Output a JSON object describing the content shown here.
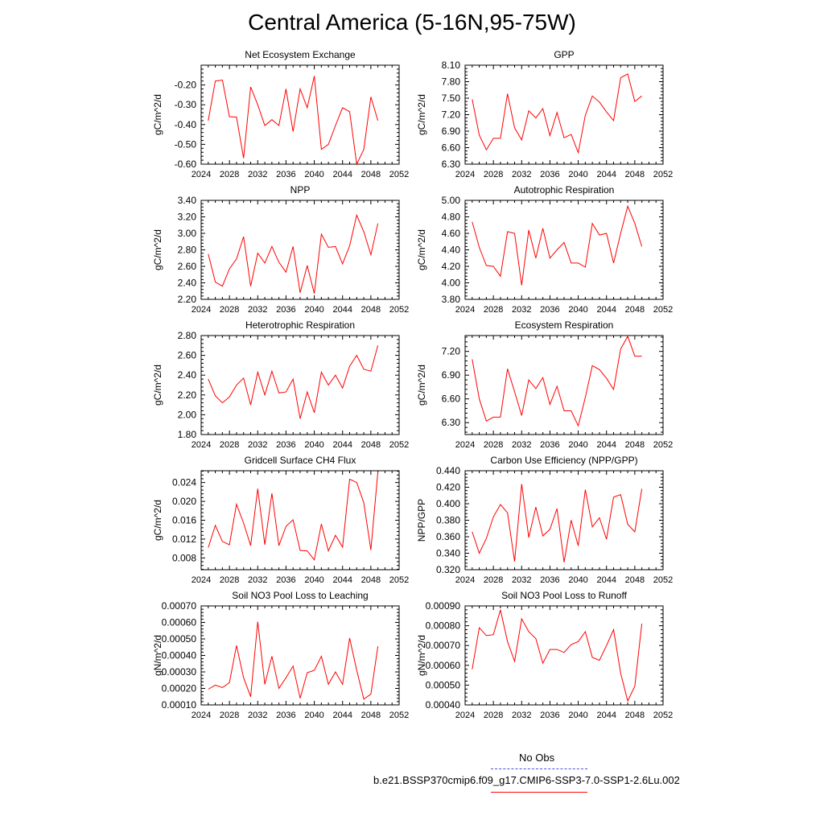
{
  "page_title": "Central America (5-16N,95-75W)",
  "colors": {
    "series_line": "#ff0000",
    "no_obs_line": "#4f4fdf",
    "axes": "#000000"
  },
  "legend": {
    "items": [
      {
        "label": "No Obs",
        "style": "dashed",
        "color": "#4f4fdf"
      },
      {
        "label": "b.e21.BSSP370cmip6.f09_g17.CMIP6-SSP3-7.0-SSP1-2.6Lu.002",
        "style": "solid",
        "color": "#ff0000"
      }
    ]
  },
  "chart_data": [
    {
      "type": "line",
      "title": "Net Ecosystem Exchange",
      "ylabel": "gC/m^2/d",
      "xlim": [
        2024,
        2052
      ],
      "ylim": [
        -0.6,
        -0.1
      ],
      "xticks": [
        "2024",
        "2028",
        "2032",
        "2036",
        "2040",
        "2044",
        "2048",
        "2052"
      ],
      "yticks": [
        "-0.60",
        "-0.50",
        "-0.40",
        "-0.30",
        "-0.20"
      ],
      "x": [
        2025,
        2026,
        2027,
        2028,
        2029,
        2030,
        2031,
        2032,
        2033,
        2034,
        2035,
        2036,
        2037,
        2038,
        2039,
        2040,
        2041,
        2042,
        2043,
        2044,
        2045,
        2046,
        2047,
        2048,
        2049
      ],
      "values": [
        -0.38,
        -0.18,
        -0.175,
        -0.36,
        -0.362,
        -0.57,
        -0.21,
        -0.3,
        -0.405,
        -0.375,
        -0.405,
        -0.22,
        -0.435,
        -0.22,
        -0.315,
        -0.155,
        -0.525,
        -0.5,
        -0.405,
        -0.315,
        -0.335,
        -0.6,
        -0.525,
        -0.26,
        -0.38
      ]
    },
    {
      "type": "line",
      "title": "GPP",
      "ylabel": "gC/m^2/d",
      "xlim": [
        2024,
        2052
      ],
      "ylim": [
        6.3,
        8.1
      ],
      "xticks": [
        "2024",
        "2028",
        "2032",
        "2036",
        "2040",
        "2044",
        "2048",
        "2052"
      ],
      "yticks": [
        "6.30",
        "6.60",
        "6.90",
        "7.20",
        "7.50",
        "7.80",
        "8.10"
      ],
      "x": [
        2025,
        2026,
        2027,
        2028,
        2029,
        2030,
        2031,
        2032,
        2033,
        2034,
        2035,
        2036,
        2037,
        2038,
        2039,
        2040,
        2041,
        2042,
        2043,
        2044,
        2045,
        2046,
        2047,
        2048,
        2049
      ],
      "values": [
        7.48,
        6.83,
        6.56,
        6.77,
        6.77,
        7.58,
        6.96,
        6.74,
        7.27,
        7.14,
        7.31,
        6.82,
        7.24,
        6.78,
        6.84,
        6.51,
        7.19,
        7.54,
        7.43,
        7.25,
        7.09,
        7.87,
        7.94,
        7.44,
        7.54
      ]
    },
    {
      "type": "line",
      "title": "NPP",
      "ylabel": "gC/m^2/d",
      "xlim": [
        2024,
        2052
      ],
      "ylim": [
        2.2,
        3.4
      ],
      "xticks": [
        "2024",
        "2028",
        "2032",
        "2036",
        "2040",
        "2044",
        "2048",
        "2052"
      ],
      "yticks": [
        "2.20",
        "2.40",
        "2.60",
        "2.80",
        "3.00",
        "3.20",
        "3.40"
      ],
      "x": [
        2025,
        2026,
        2027,
        2028,
        2029,
        2030,
        2031,
        2032,
        2033,
        2034,
        2035,
        2036,
        2037,
        2038,
        2039,
        2040,
        2041,
        2042,
        2043,
        2044,
        2045,
        2046,
        2047,
        2048,
        2049
      ],
      "values": [
        2.75,
        2.41,
        2.36,
        2.57,
        2.69,
        2.96,
        2.36,
        2.76,
        2.64,
        2.84,
        2.65,
        2.53,
        2.84,
        2.28,
        2.61,
        2.27,
        2.99,
        2.83,
        2.84,
        2.63,
        2.85,
        3.22,
        3.02,
        2.74,
        3.12
      ]
    },
    {
      "type": "line",
      "title": "Autotrophic Respiration",
      "ylabel": "gC/m^2/d",
      "xlim": [
        2024,
        2052
      ],
      "ylim": [
        3.8,
        5.0
      ],
      "xticks": [
        "2024",
        "2028",
        "2032",
        "2036",
        "2040",
        "2044",
        "2048",
        "2052"
      ],
      "yticks": [
        "3.80",
        "4.00",
        "4.20",
        "4.40",
        "4.60",
        "4.80",
        "5.00"
      ],
      "x": [
        2025,
        2026,
        2027,
        2028,
        2029,
        2030,
        2031,
        2032,
        2033,
        2034,
        2035,
        2036,
        2037,
        2038,
        2039,
        2040,
        2041,
        2042,
        2043,
        2044,
        2045,
        2046,
        2047,
        2048,
        2049
      ],
      "values": [
        4.74,
        4.43,
        4.21,
        4.2,
        4.08,
        4.62,
        4.6,
        3.97,
        4.64,
        4.3,
        4.66,
        4.3,
        4.4,
        4.49,
        4.24,
        4.24,
        4.19,
        4.72,
        4.58,
        4.6,
        4.24,
        4.6,
        4.93,
        4.72,
        4.44
      ]
    },
    {
      "type": "line",
      "title": "Heterotrophic Respiration",
      "ylabel": "gC/m^2/d",
      "xlim": [
        2024,
        2052
      ],
      "ylim": [
        1.8,
        2.8
      ],
      "xticks": [
        "2024",
        "2028",
        "2032",
        "2036",
        "2040",
        "2044",
        "2048",
        "2052"
      ],
      "yticks": [
        "1.80",
        "2.00",
        "2.20",
        "2.40",
        "2.60",
        "2.80"
      ],
      "x": [
        2025,
        2026,
        2027,
        2028,
        2029,
        2030,
        2031,
        2032,
        2033,
        2034,
        2035,
        2036,
        2037,
        2038,
        2039,
        2040,
        2041,
        2042,
        2043,
        2044,
        2045,
        2046,
        2047,
        2048,
        2049
      ],
      "values": [
        2.36,
        2.19,
        2.12,
        2.18,
        2.3,
        2.37,
        2.1,
        2.43,
        2.2,
        2.44,
        2.22,
        2.23,
        2.36,
        1.96,
        2.23,
        2.02,
        2.43,
        2.3,
        2.4,
        2.27,
        2.49,
        2.6,
        2.46,
        2.44,
        2.7
      ]
    },
    {
      "type": "line",
      "title": "Ecosystem Respiration",
      "ylabel": "gC/m^2/d",
      "xlim": [
        2024,
        2052
      ],
      "ylim": [
        6.15,
        7.4
      ],
      "xticks": [
        "2024",
        "2028",
        "2032",
        "2036",
        "2040",
        "2044",
        "2048",
        "2052"
      ],
      "yticks": [
        "6.30",
        "6.60",
        "6.90",
        "7.20"
      ],
      "x": [
        2025,
        2026,
        2027,
        2028,
        2029,
        2030,
        2031,
        2032,
        2033,
        2034,
        2035,
        2036,
        2037,
        2038,
        2039,
        2040,
        2041,
        2042,
        2043,
        2044,
        2045,
        2046,
        2047,
        2048,
        2049
      ],
      "values": [
        7.1,
        6.6,
        6.32,
        6.37,
        6.37,
        6.98,
        6.69,
        6.39,
        6.84,
        6.73,
        6.87,
        6.53,
        6.76,
        6.45,
        6.45,
        6.26,
        6.62,
        7.02,
        6.97,
        6.86,
        6.72,
        7.23,
        7.39,
        7.14,
        7.14
      ]
    },
    {
      "type": "line",
      "title": "Gridcell Surface CH4 Flux",
      "ylabel": "gC/m^2/d",
      "xlim": [
        2024,
        2052
      ],
      "ylim": [
        0.0055,
        0.0265
      ],
      "xticks": [
        "2024",
        "2028",
        "2032",
        "2036",
        "2040",
        "2044",
        "2048",
        "2052"
      ],
      "yticks": [
        "0.008",
        "0.012",
        "0.016",
        "0.020",
        "0.024"
      ],
      "x": [
        2025,
        2026,
        2027,
        2028,
        2029,
        2030,
        2031,
        2032,
        2033,
        2034,
        2035,
        2036,
        2037,
        2038,
        2039,
        2040,
        2041,
        2042,
        2043,
        2044,
        2045,
        2046,
        2047,
        2048,
        2049
      ],
      "values": [
        0.0102,
        0.0149,
        0.0115,
        0.0108,
        0.0194,
        0.0154,
        0.0106,
        0.0227,
        0.0108,
        0.0217,
        0.0106,
        0.0147,
        0.0161,
        0.0096,
        0.0095,
        0.0076,
        0.0152,
        0.0095,
        0.0128,
        0.0103,
        0.0247,
        0.024,
        0.0197,
        0.0097,
        0.0263
      ]
    },
    {
      "type": "line",
      "title": "Carbon Use Efficiency (NPP/GPP)",
      "ylabel": "NPP/GPP",
      "xlim": [
        2024,
        2052
      ],
      "ylim": [
        0.32,
        0.44
      ],
      "xticks": [
        "2024",
        "2028",
        "2032",
        "2036",
        "2040",
        "2044",
        "2048",
        "2052"
      ],
      "yticks": [
        "0.320",
        "0.340",
        "0.360",
        "0.380",
        "0.400",
        "0.420",
        "0.440"
      ],
      "x": [
        2025,
        2026,
        2027,
        2028,
        2029,
        2030,
        2031,
        2032,
        2033,
        2034,
        2035,
        2036,
        2037,
        2038,
        2039,
        2040,
        2041,
        2042,
        2043,
        2044,
        2045,
        2046,
        2047,
        2048,
        2049
      ],
      "values": [
        0.366,
        0.34,
        0.358,
        0.384,
        0.399,
        0.389,
        0.33,
        0.424,
        0.359,
        0.396,
        0.361,
        0.369,
        0.394,
        0.329,
        0.38,
        0.349,
        0.417,
        0.372,
        0.383,
        0.357,
        0.408,
        0.411,
        0.375,
        0.366,
        0.418
      ]
    },
    {
      "type": "line",
      "title": "Soil NO3 Pool Loss to Leaching",
      "ylabel": "gN/m^2/d",
      "xlim": [
        2024,
        2052
      ],
      "ylim": [
        0.0001,
        0.0007
      ],
      "xticks": [
        "2024",
        "2028",
        "2032",
        "2036",
        "2040",
        "2044",
        "2048",
        "2052"
      ],
      "yticks": [
        "0.00010",
        "0.00020",
        "0.00030",
        "0.00040",
        "0.00050",
        "0.00060",
        "0.00070"
      ],
      "x": [
        2025,
        2026,
        2027,
        2028,
        2029,
        2030,
        2031,
        2032,
        2033,
        2034,
        2035,
        2036,
        2037,
        2038,
        2039,
        2040,
        2041,
        2042,
        2043,
        2044,
        2045,
        2046,
        2047,
        2048,
        2049
      ],
      "values": [
        0.000195,
        0.00022,
        0.000205,
        0.000235,
        0.00046,
        0.000265,
        0.00015,
        0.000605,
        0.000225,
        0.000395,
        0.0002,
        0.000265,
        0.000335,
        0.00014,
        0.000295,
        0.00031,
        0.000395,
        0.000225,
        0.0003,
        0.000225,
        0.000505,
        0.00031,
        0.000135,
        0.000165,
        0.000455
      ]
    },
    {
      "type": "line",
      "title": "Soil NO3 Pool Loss to Runoff",
      "ylabel": "gN/m^2/d",
      "xlim": [
        2024,
        2052
      ],
      "ylim": [
        0.0004,
        0.0009
      ],
      "xticks": [
        "2024",
        "2028",
        "2032",
        "2036",
        "2040",
        "2044",
        "2048",
        "2052"
      ],
      "yticks": [
        "0.00040",
        "0.00050",
        "0.00060",
        "0.00070",
        "0.00080",
        "0.00090"
      ],
      "x": [
        2025,
        2026,
        2027,
        2028,
        2029,
        2030,
        2031,
        2032,
        2033,
        2034,
        2035,
        2036,
        2037,
        2038,
        2039,
        2040,
        2041,
        2042,
        2043,
        2044,
        2045,
        2046,
        2047,
        2048,
        2049
      ],
      "values": [
        0.00058,
        0.00079,
        0.00075,
        0.000755,
        0.00088,
        0.00072,
        0.00062,
        0.000835,
        0.00077,
        0.000735,
        0.00061,
        0.00068,
        0.00068,
        0.000665,
        0.000705,
        0.00072,
        0.00077,
        0.00064,
        0.000625,
        0.0007,
        0.00078,
        0.00056,
        0.00042,
        0.000495,
        0.00081
      ]
    }
  ]
}
